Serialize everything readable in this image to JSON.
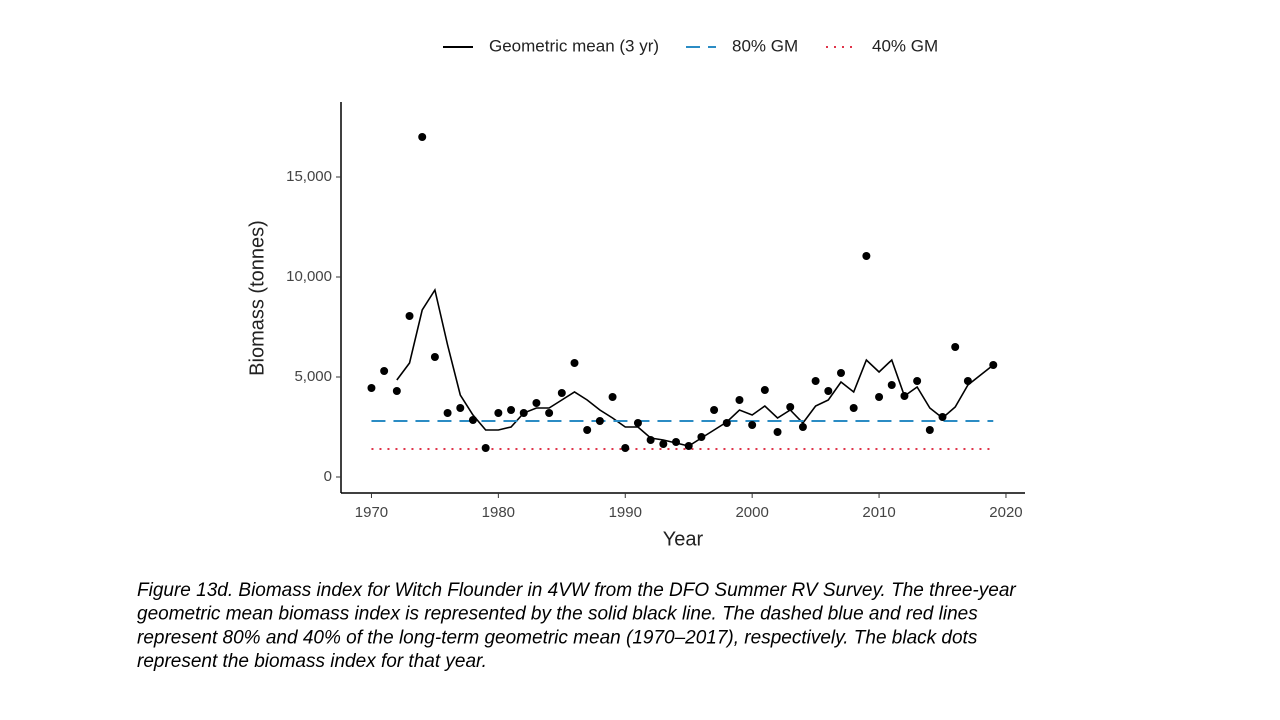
{
  "chart_data": {
    "type": "line",
    "x_label": "Year",
    "y_label": "Biomass (tonnes)",
    "x": [
      1970,
      1971,
      1972,
      1973,
      1974,
      1975,
      1976,
      1977,
      1978,
      1979,
      1980,
      1981,
      1982,
      1983,
      1984,
      1985,
      1986,
      1987,
      1988,
      1989,
      1990,
      1991,
      1992,
      1993,
      1994,
      1995,
      1996,
      1997,
      1998,
      1999,
      2000,
      2001,
      2002,
      2003,
      2004,
      2005,
      2006,
      2007,
      2008,
      2009,
      2010,
      2011,
      2012,
      2013,
      2014,
      2015,
      2016,
      2017,
      2018,
      2019
    ],
    "points": {
      "color": "#000000",
      "values": [
        4450,
        5300,
        4300,
        8050,
        17000,
        6000,
        3200,
        3450,
        2850,
        1450,
        3200,
        3350,
        3200,
        3700,
        3200,
        4200,
        5700,
        2350,
        2800,
        4000,
        1450,
        2700,
        1850,
        1650,
        1750,
        1550,
        2000,
        3350,
        2700,
        3850,
        2600,
        4350,
        2250,
        3500,
        2500,
        4800,
        4300,
        5200,
        3450,
        11050,
        4000,
        4600,
        4050,
        4800,
        2350,
        3000,
        6500,
        4800,
        null,
        5600
      ]
    },
    "series": [
      {
        "name": "Geometric mean (3 yr)",
        "color": "#000000",
        "style": "solid",
        "values": [
          null,
          null,
          4850,
          5700,
          8350,
          9350,
          6600,
          4100,
          3100,
          2350,
          2350,
          2500,
          3200,
          3450,
          3450,
          3850,
          4250,
          3850,
          3350,
          2950,
          2500,
          2500,
          1950,
          1850,
          1700,
          1550,
          1950,
          2350,
          2750,
          3350,
          3100,
          3550,
          2950,
          3350,
          2700,
          3550,
          3850,
          4750,
          4250,
          5850,
          5250,
          5850,
          4050,
          4500,
          3450,
          2950,
          3500,
          4600,
          5100,
          5600
        ]
      },
      {
        "name": "80% GM",
        "color": "#2b8cc4",
        "style": "dashed",
        "x": [
          1970,
          2019
        ],
        "values": [
          2800,
          2800
        ]
      },
      {
        "name": "40% GM",
        "color": "#e0344a",
        "style": "dotted",
        "x": [
          1970,
          2019
        ],
        "values": [
          1400,
          1400
        ]
      }
    ],
    "xlim": [
      1967.6,
      2021.5
    ],
    "ylim": [
      -800,
      18750
    ],
    "xticks": [
      1970,
      1980,
      1990,
      2000,
      2010,
      2020
    ],
    "yticks": [
      0,
      {
        "value": 5000,
        "label": "5,000"
      },
      {
        "value": 10000,
        "label": "10,000"
      },
      {
        "value": 15000,
        "label": "15,000"
      }
    ],
    "legend": "top",
    "caption": [
      "Figure 13d. Biomass index for Witch Flounder in 4VW from the DFO Summer RV Survey. The three-year",
      "geometric mean biomass index is represented by the solid black line. The dashed blue and red lines",
      "represent 80% and 40% of the long-term geometric mean (1970–2017), respectively. The black dots",
      "represent the biomass index for that year."
    ]
  }
}
